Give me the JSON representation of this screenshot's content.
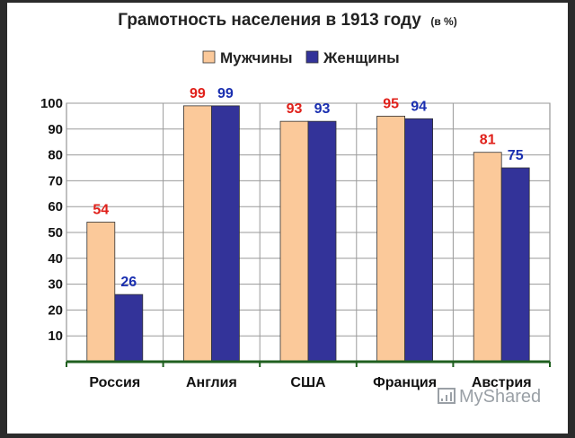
{
  "chart_data": {
    "type": "bar",
    "title": "Грамотность населения в 1913 году",
    "subtitle": "(в %)",
    "categories": [
      "Россия",
      "Англия",
      "США",
      "Франция",
      "Австрия"
    ],
    "series": [
      {
        "name": "Мужчины",
        "values": [
          54,
          99,
          93,
          95,
          81
        ],
        "color": "#fbc99a",
        "label_color": "#e0201a"
      },
      {
        "name": "Женщины",
        "values": [
          26,
          99,
          93,
          94,
          75
        ],
        "color": "#333399",
        "label_color": "#1a2fb0"
      }
    ],
    "ylim": [
      0,
      100
    ],
    "yticks": [
      10,
      20,
      30,
      40,
      50,
      60,
      70,
      80,
      90,
      100
    ],
    "grid": true,
    "legend": "top-center"
  },
  "watermark": {
    "text": "MyShared",
    "color": "#9aa0a6"
  }
}
